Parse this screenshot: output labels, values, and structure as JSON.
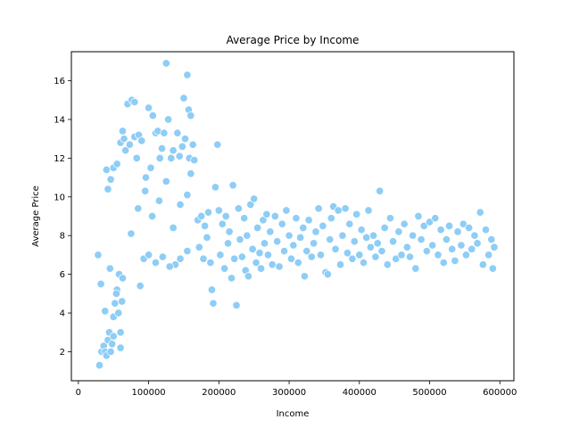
{
  "chart_data": {
    "type": "scatter",
    "title": "Average Price by Income",
    "xlabel": "Income",
    "ylabel": "Average Price",
    "xlim": [
      -10000,
      620000
    ],
    "ylim": [
      0.5,
      17.5
    ],
    "x_ticks": [
      0,
      100000,
      200000,
      300000,
      400000,
      500000,
      600000
    ],
    "x_tick_labels": [
      "0",
      "100000",
      "200000",
      "300000",
      "400000",
      "500000",
      "600000"
    ],
    "y_ticks": [
      2,
      4,
      6,
      8,
      10,
      12,
      14,
      16
    ],
    "y_tick_labels": [
      "2",
      "4",
      "6",
      "8",
      "10",
      "12",
      "14",
      "16"
    ],
    "grid": false,
    "legend": "none",
    "marker_color": "#8ecdf6",
    "marker_edge_color": "#ffffff",
    "series": [
      {
        "points": [
          [
            30000,
            1.3
          ],
          [
            33000,
            2.0
          ],
          [
            36000,
            2.3
          ],
          [
            38000,
            2.0
          ],
          [
            40000,
            1.8
          ],
          [
            42000,
            2.6
          ],
          [
            44000,
            3.0
          ],
          [
            46000,
            2.0
          ],
          [
            48000,
            2.4
          ],
          [
            50000,
            3.8
          ],
          [
            52000,
            4.5
          ],
          [
            55000,
            5.2
          ],
          [
            57000,
            4.0
          ],
          [
            58000,
            6.0
          ],
          [
            60000,
            2.2
          ],
          [
            60000,
            3.0
          ],
          [
            62000,
            4.6
          ],
          [
            63000,
            5.8
          ],
          [
            28000,
            7.0
          ],
          [
            32000,
            5.5
          ],
          [
            45000,
            6.3
          ],
          [
            54000,
            5.0
          ],
          [
            38000,
            4.1
          ],
          [
            50000,
            2.8
          ],
          [
            40000,
            11.4
          ],
          [
            42000,
            10.4
          ],
          [
            46000,
            10.9
          ],
          [
            50000,
            11.5
          ],
          [
            55000,
            11.7
          ],
          [
            60000,
            12.8
          ],
          [
            63000,
            13.4
          ],
          [
            65000,
            13.0
          ],
          [
            67000,
            12.4
          ],
          [
            70000,
            14.8
          ],
          [
            73000,
            12.7
          ],
          [
            76000,
            15.0
          ],
          [
            80000,
            14.9
          ],
          [
            80000,
            13.1
          ],
          [
            83000,
            12.0
          ],
          [
            86000,
            13.2
          ],
          [
            90000,
            12.9
          ],
          [
            93000,
            6.8
          ],
          [
            88000,
            5.4
          ],
          [
            96000,
            11.0
          ],
          [
            100000,
            14.6
          ],
          [
            103000,
            11.5
          ],
          [
            106000,
            14.2
          ],
          [
            110000,
            13.3
          ],
          [
            113000,
            13.4
          ],
          [
            116000,
            12.0
          ],
          [
            119000,
            12.5
          ],
          [
            122000,
            13.3
          ],
          [
            125000,
            16.9
          ],
          [
            128000,
            14.0
          ],
          [
            132000,
            12.0
          ],
          [
            135000,
            12.4
          ],
          [
            138000,
            6.5
          ],
          [
            141000,
            13.3
          ],
          [
            144000,
            12.1
          ],
          [
            148000,
            12.6
          ],
          [
            150000,
            15.1
          ],
          [
            152000,
            13.0
          ],
          [
            155000,
            16.3
          ],
          [
            157000,
            14.5
          ],
          [
            160000,
            14.2
          ],
          [
            158000,
            12.0
          ],
          [
            163000,
            12.7
          ],
          [
            165000,
            11.9
          ],
          [
            100000,
            7.0
          ],
          [
            110000,
            6.6
          ],
          [
            120000,
            6.9
          ],
          [
            130000,
            6.4
          ],
          [
            145000,
            6.8
          ],
          [
            155000,
            7.2
          ],
          [
            160000,
            11.2
          ],
          [
            75000,
            8.1
          ],
          [
            85000,
            9.4
          ],
          [
            95000,
            10.3
          ],
          [
            105000,
            9.0
          ],
          [
            115000,
            9.8
          ],
          [
            125000,
            10.8
          ],
          [
            135000,
            8.4
          ],
          [
            145000,
            9.6
          ],
          [
            155000,
            10.1
          ],
          [
            170000,
            8.8
          ],
          [
            172000,
            7.4
          ],
          [
            175000,
            9.0
          ],
          [
            178000,
            6.8
          ],
          [
            180000,
            8.5
          ],
          [
            183000,
            7.9
          ],
          [
            185000,
            9.2
          ],
          [
            188000,
            6.6
          ],
          [
            190000,
            5.2
          ],
          [
            192000,
            4.5
          ],
          [
            195000,
            10.5
          ],
          [
            198000,
            12.7
          ],
          [
            200000,
            9.3
          ],
          [
            202000,
            7.0
          ],
          [
            205000,
            8.6
          ],
          [
            208000,
            6.3
          ],
          [
            210000,
            9.0
          ],
          [
            213000,
            7.6
          ],
          [
            215000,
            8.2
          ],
          [
            218000,
            5.8
          ],
          [
            220000,
            10.6
          ],
          [
            222000,
            6.8
          ],
          [
            225000,
            4.4
          ],
          [
            228000,
            9.4
          ],
          [
            230000,
            7.8
          ],
          [
            233000,
            6.9
          ],
          [
            236000,
            8.9
          ],
          [
            238000,
            6.2
          ],
          [
            240000,
            8.0
          ],
          [
            242000,
            5.9
          ],
          [
            245000,
            9.6
          ],
          [
            248000,
            7.3
          ],
          [
            250000,
            9.9
          ],
          [
            253000,
            6.6
          ],
          [
            255000,
            8.4
          ],
          [
            258000,
            7.1
          ],
          [
            260000,
            6.3
          ],
          [
            263000,
            8.8
          ],
          [
            265000,
            7.6
          ],
          [
            268000,
            9.1
          ],
          [
            270000,
            7.0
          ],
          [
            273000,
            8.2
          ],
          [
            276000,
            6.5
          ],
          [
            280000,
            9.0
          ],
          [
            283000,
            7.7
          ],
          [
            286000,
            6.4
          ],
          [
            290000,
            8.6
          ],
          [
            293000,
            7.2
          ],
          [
            296000,
            9.3
          ],
          [
            300000,
            8.0
          ],
          [
            303000,
            6.8
          ],
          [
            306000,
            7.5
          ],
          [
            310000,
            8.9
          ],
          [
            313000,
            6.6
          ],
          [
            316000,
            7.9
          ],
          [
            320000,
            8.4
          ],
          [
            322000,
            5.9
          ],
          [
            325000,
            7.2
          ],
          [
            328000,
            8.8
          ],
          [
            332000,
            6.9
          ],
          [
            335000,
            7.6
          ],
          [
            338000,
            8.2
          ],
          [
            342000,
            9.4
          ],
          [
            345000,
            7.0
          ],
          [
            348000,
            8.5
          ],
          [
            352000,
            6.1
          ],
          [
            355000,
            6.0
          ],
          [
            358000,
            7.8
          ],
          [
            360000,
            8.9
          ],
          [
            363000,
            9.5
          ],
          [
            366000,
            7.3
          ],
          [
            370000,
            9.3
          ],
          [
            373000,
            6.5
          ],
          [
            376000,
            8.0
          ],
          [
            380000,
            9.4
          ],
          [
            383000,
            7.1
          ],
          [
            386000,
            8.6
          ],
          [
            390000,
            6.8
          ],
          [
            393000,
            7.7
          ],
          [
            396000,
            9.1
          ],
          [
            400000,
            7.0
          ],
          [
            403000,
            8.3
          ],
          [
            406000,
            6.6
          ],
          [
            410000,
            7.9
          ],
          [
            413000,
            9.3
          ],
          [
            416000,
            7.4
          ],
          [
            420000,
            8.0
          ],
          [
            423000,
            6.9
          ],
          [
            426000,
            7.6
          ],
          [
            429000,
            10.3
          ],
          [
            432000,
            7.2
          ],
          [
            436000,
            8.4
          ],
          [
            440000,
            6.5
          ],
          [
            444000,
            8.9
          ],
          [
            448000,
            7.7
          ],
          [
            452000,
            6.8
          ],
          [
            456000,
            8.2
          ],
          [
            460000,
            7.0
          ],
          [
            464000,
            8.6
          ],
          [
            468000,
            7.4
          ],
          [
            472000,
            6.9
          ],
          [
            476000,
            8.0
          ],
          [
            480000,
            6.3
          ],
          [
            484000,
            9.0
          ],
          [
            488000,
            7.8
          ],
          [
            492000,
            8.5
          ],
          [
            496000,
            7.2
          ],
          [
            500000,
            8.7
          ],
          [
            504000,
            7.5
          ],
          [
            508000,
            8.9
          ],
          [
            512000,
            7.0
          ],
          [
            516000,
            8.3
          ],
          [
            520000,
            6.6
          ],
          [
            524000,
            7.8
          ],
          [
            528000,
            8.5
          ],
          [
            532000,
            7.3
          ],
          [
            536000,
            6.7
          ],
          [
            540000,
            8.2
          ],
          [
            545000,
            7.5
          ],
          [
            548000,
            8.6
          ],
          [
            552000,
            7.0
          ],
          [
            556000,
            8.4
          ],
          [
            560000,
            7.3
          ],
          [
            564000,
            8.0
          ],
          [
            568000,
            7.6
          ],
          [
            572000,
            9.2
          ],
          [
            576000,
            6.5
          ],
          [
            580000,
            8.3
          ],
          [
            584000,
            7.0
          ],
          [
            588000,
            7.8
          ],
          [
            590000,
            6.3
          ],
          [
            592000,
            7.4
          ]
        ]
      }
    ]
  }
}
